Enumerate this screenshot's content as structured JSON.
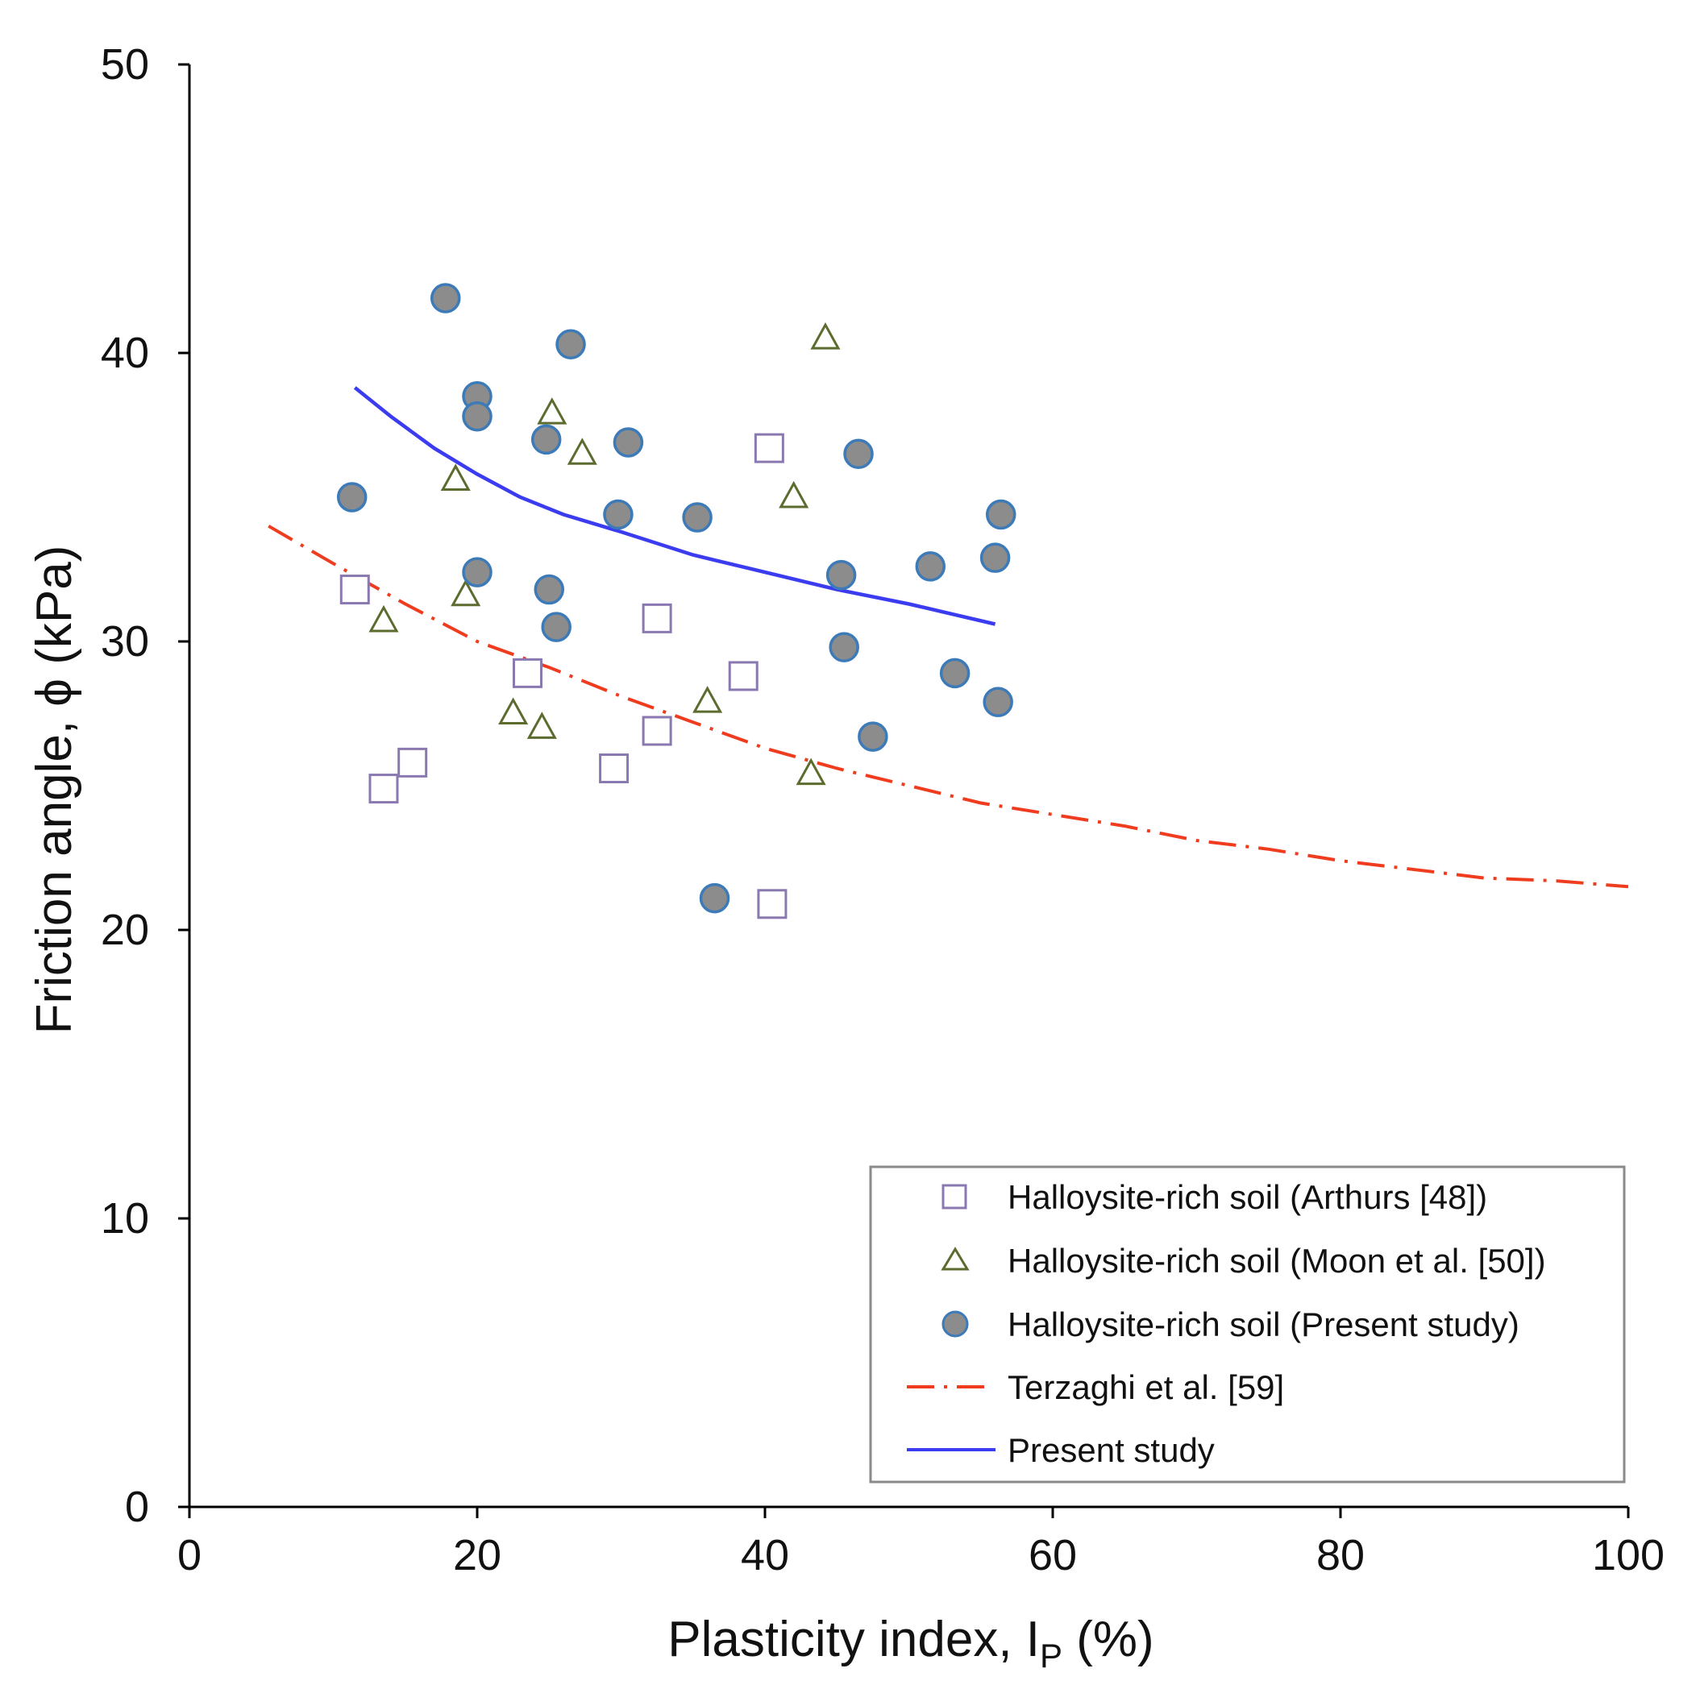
{
  "chart_data": {
    "type": "scatter",
    "title": "",
    "xlabel": {
      "main": "Plasticity  index,  I",
      "sub": "P",
      "suffix": " (%)"
    },
    "ylabel": "Friction angle,  ϕ (kPa)",
    "xlim": [
      0,
      100
    ],
    "ylim": [
      0,
      50
    ],
    "xticks": [
      0,
      20,
      40,
      60,
      80,
      100
    ],
    "yticks": [
      0,
      10,
      20,
      30,
      40,
      50
    ],
    "grid": false,
    "legend_position": "bottom-right",
    "colors": {
      "square": "#8a78b0",
      "triangle": "#5c6b2e",
      "circle_fill": "#8c8c8c",
      "circle_edge": "#3c7ab8",
      "terzaghi": "#f03c1e",
      "present": "#3b3bf0",
      "axis": "#000000"
    },
    "series": [
      {
        "name": "Halloysite-rich soil (Arthurs [48])",
        "marker": "square",
        "points": [
          [
            11.5,
            31.8
          ],
          [
            13.5,
            24.9
          ],
          [
            15.5,
            25.8
          ],
          [
            23.5,
            28.9
          ],
          [
            29.5,
            25.6
          ],
          [
            32.5,
            30.8
          ],
          [
            32.5,
            26.9
          ],
          [
            38.5,
            28.8
          ],
          [
            40.3,
            36.7
          ],
          [
            40.5,
            20.9
          ]
        ]
      },
      {
        "name": "Halloysite-rich soil (Moon et al. [50])",
        "marker": "triangle",
        "points": [
          [
            13.5,
            30.7
          ],
          [
            18.5,
            35.6
          ],
          [
            19.2,
            31.6
          ],
          [
            22.5,
            27.5
          ],
          [
            24.5,
            27.0
          ],
          [
            25.2,
            37.9
          ],
          [
            27.3,
            36.5
          ],
          [
            36.0,
            27.9
          ],
          [
            42.0,
            35.0
          ],
          [
            43.2,
            25.4
          ],
          [
            44.2,
            40.5
          ]
        ]
      },
      {
        "name": "Halloysite-rich soil (Present study)",
        "marker": "circle",
        "points": [
          [
            11.3,
            35.0
          ],
          [
            17.8,
            41.9
          ],
          [
            20.0,
            38.5
          ],
          [
            20.0,
            37.8
          ],
          [
            20.0,
            32.4
          ],
          [
            24.8,
            37.0
          ],
          [
            25.0,
            31.8
          ],
          [
            25.5,
            30.5
          ],
          [
            26.5,
            40.3
          ],
          [
            29.8,
            34.4
          ],
          [
            30.5,
            36.9
          ],
          [
            35.3,
            34.3
          ],
          [
            36.5,
            21.1
          ],
          [
            45.3,
            32.3
          ],
          [
            45.5,
            29.8
          ],
          [
            46.5,
            36.5
          ],
          [
            47.5,
            26.7
          ],
          [
            51.5,
            32.6
          ],
          [
            53.2,
            28.9
          ],
          [
            56.0,
            32.9
          ],
          [
            56.2,
            27.9
          ],
          [
            56.4,
            34.4
          ]
        ]
      },
      {
        "name": "Terzaghi et al. [59]",
        "marker": "line",
        "style": "dash-dot",
        "points": [
          [
            5.5,
            34.0
          ],
          [
            10,
            32.7
          ],
          [
            15,
            31.3
          ],
          [
            20,
            30.0
          ],
          [
            25,
            29.1
          ],
          [
            30,
            28.1
          ],
          [
            35,
            27.2
          ],
          [
            40,
            26.3
          ],
          [
            45,
            25.6
          ],
          [
            50,
            25.0
          ],
          [
            55,
            24.4
          ],
          [
            60,
            24.0
          ],
          [
            65,
            23.6
          ],
          [
            70,
            23.1
          ],
          [
            75,
            22.8
          ],
          [
            80,
            22.4
          ],
          [
            85,
            22.1
          ],
          [
            90,
            21.8
          ],
          [
            95,
            21.7
          ],
          [
            100,
            21.5
          ]
        ]
      },
      {
        "name": "Present study",
        "marker": "line",
        "style": "solid",
        "points": [
          [
            11.5,
            38.8
          ],
          [
            14,
            37.8
          ],
          [
            17,
            36.7
          ],
          [
            20,
            35.8
          ],
          [
            23,
            35.0
          ],
          [
            26,
            34.4
          ],
          [
            30,
            33.8
          ],
          [
            35,
            33.0
          ],
          [
            40,
            32.4
          ],
          [
            45,
            31.8
          ],
          [
            50,
            31.3
          ],
          [
            56,
            30.6
          ]
        ]
      }
    ]
  }
}
